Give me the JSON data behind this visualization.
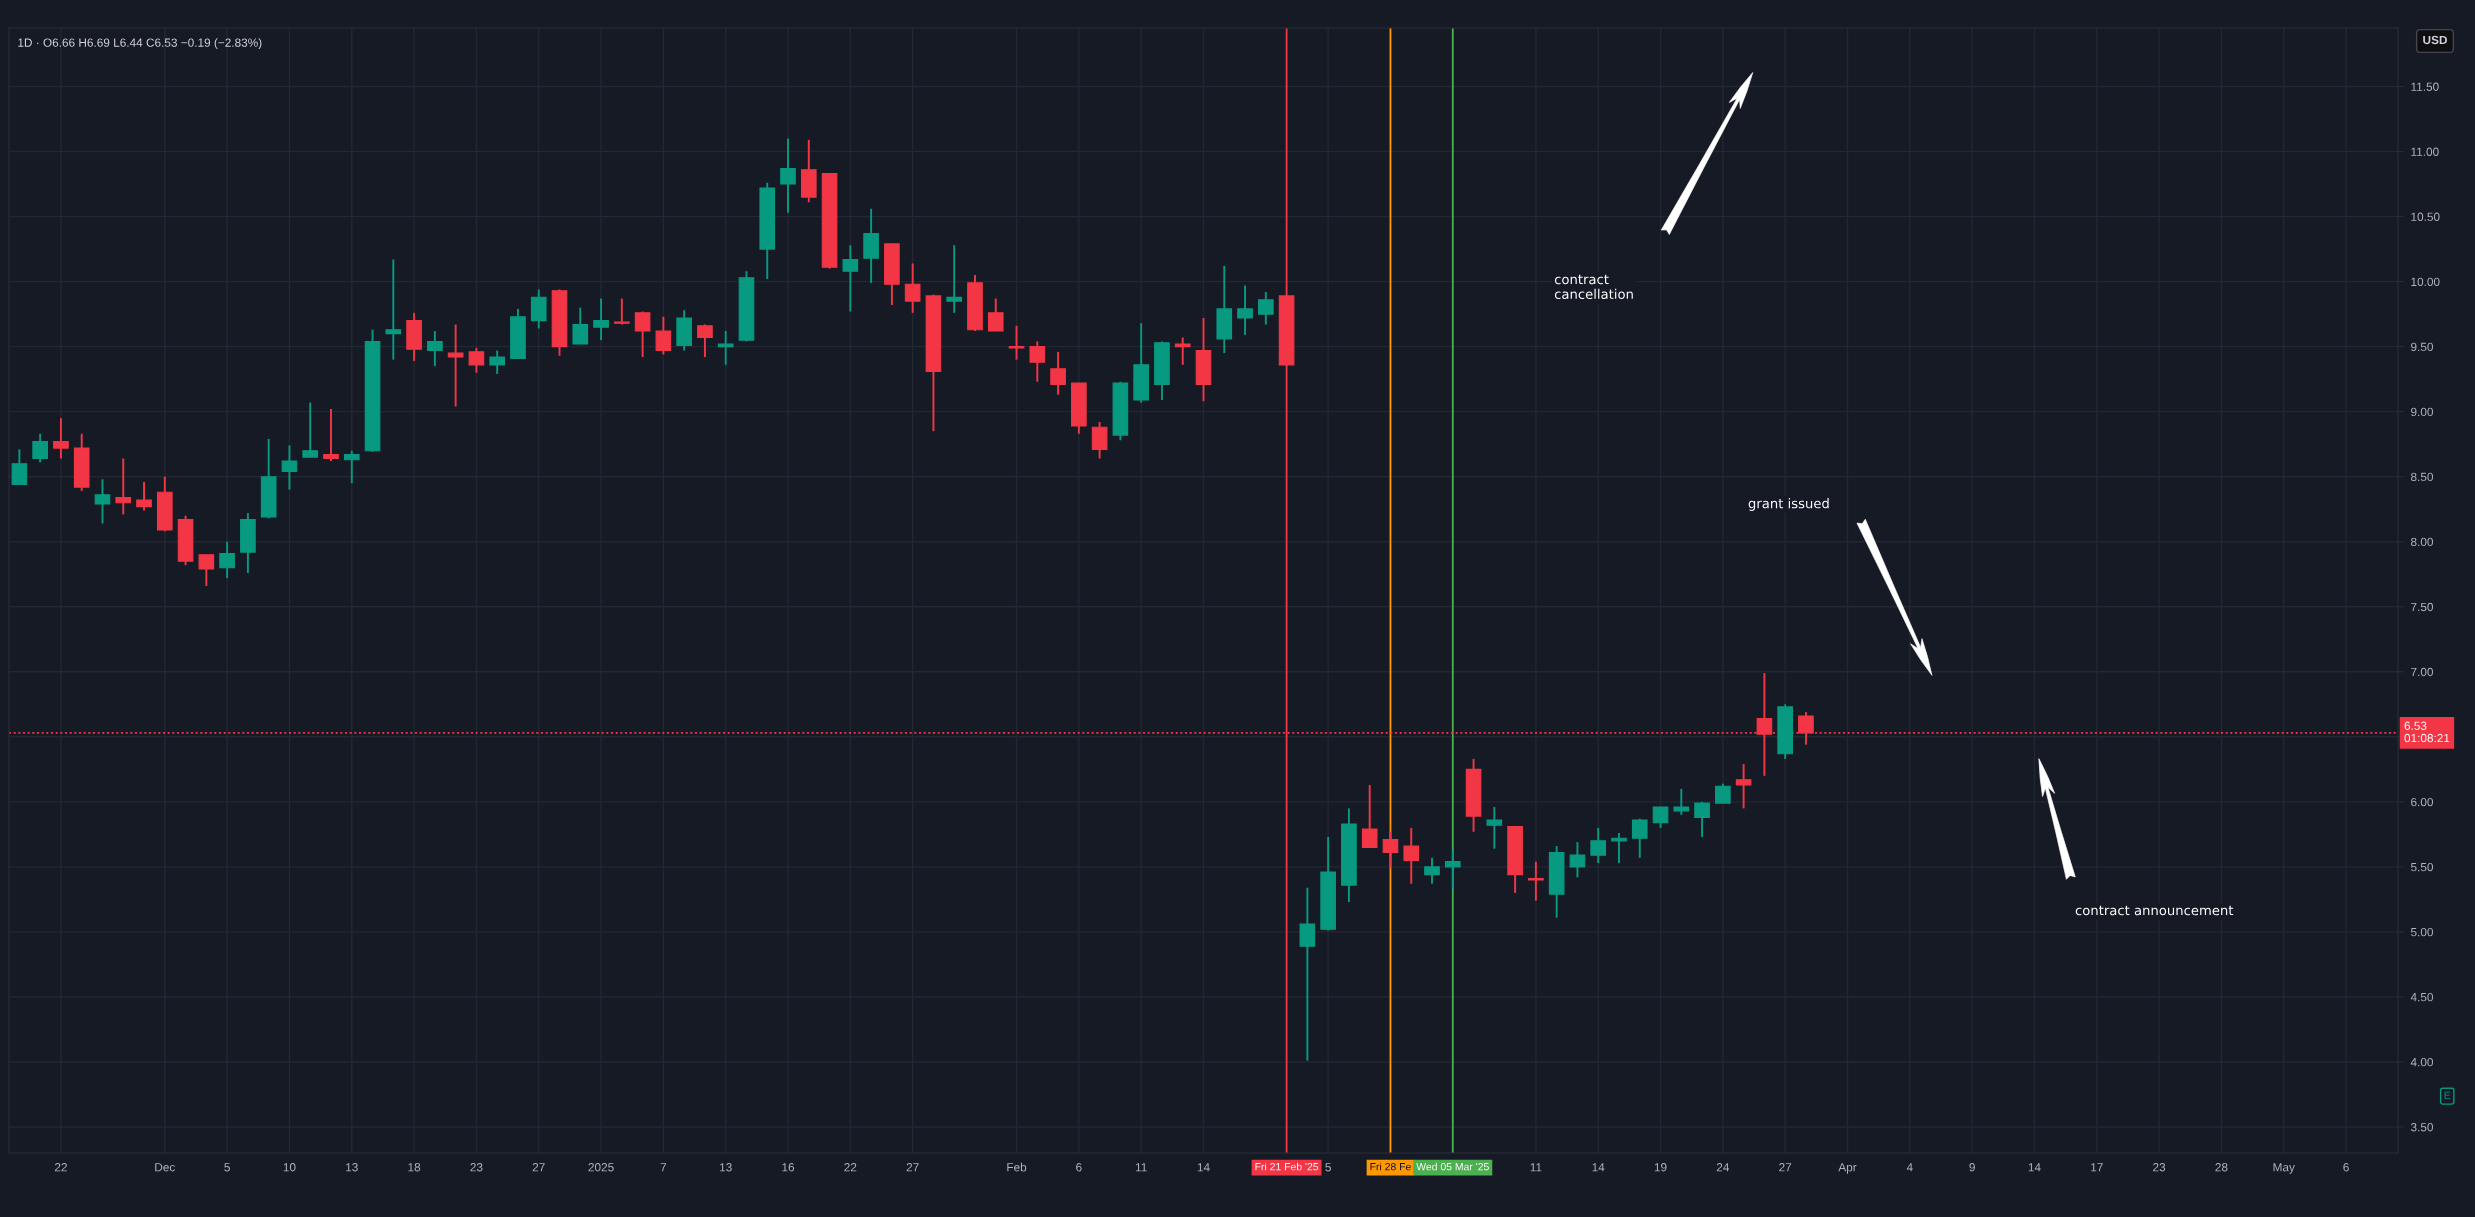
{
  "chart_data": {
    "type": "candlestick",
    "title": "1D · O6.66 H6.69 L6.44 C6.53 −0.19 (−2.83%)",
    "ylabel": "USD",
    "categories": [
      null,
      null,
      "22",
      null,
      null,
      null,
      null,
      "Dec",
      null,
      null,
      "5",
      null,
      null,
      "10",
      null,
      null,
      "13",
      null,
      null,
      "18",
      null,
      null,
      "23",
      null,
      null,
      "27",
      null,
      null,
      "2025",
      null,
      null,
      "7",
      null,
      null,
      "13",
      null,
      null,
      "16",
      null,
      null,
      "22",
      null,
      null,
      "27",
      null,
      null,
      null,
      null,
      "Feb",
      null,
      null,
      "6",
      null,
      null,
      "11",
      null,
      null,
      "14",
      null,
      null,
      null,
      "Fri 21 Feb '25",
      null,
      "5",
      null,
      null,
      "Fri 28 Fe",
      null,
      null,
      "Wed 05 Mar '25",
      null,
      null,
      null,
      "11",
      null,
      null,
      "14",
      null,
      null,
      "19",
      null,
      null,
      "24",
      null,
      null,
      "27",
      null,
      null,
      "Apr",
      null,
      null,
      "4",
      null,
      null,
      "9",
      null,
      null,
      "14",
      null,
      null,
      "17",
      null,
      null,
      "23",
      null,
      null,
      "28",
      null,
      null,
      "May",
      null,
      null,
      "6",
      null,
      null
    ],
    "ohlc": [
      [
        8.44,
        8.71,
        8.44,
        8.6
      ],
      [
        8.64,
        8.83,
        8.61,
        8.77
      ],
      [
        8.77,
        8.95,
        8.64,
        8.72
      ],
      [
        8.72,
        8.83,
        8.39,
        8.42
      ],
      [
        8.29,
        8.48,
        8.14,
        8.36
      ],
      [
        8.34,
        8.64,
        8.21,
        8.3
      ],
      [
        8.32,
        8.46,
        8.24,
        8.27
      ],
      [
        8.38,
        8.5,
        8.08,
        8.09
      ],
      [
        8.17,
        8.2,
        7.82,
        7.85
      ],
      [
        7.9,
        7.9,
        7.66,
        7.79
      ],
      [
        7.8,
        8.0,
        7.72,
        7.91
      ],
      [
        7.92,
        8.22,
        7.76,
        8.17
      ],
      [
        8.19,
        8.79,
        8.18,
        8.5
      ],
      [
        8.54,
        8.74,
        8.4,
        8.62
      ],
      [
        8.65,
        9.07,
        8.65,
        8.7
      ],
      [
        8.67,
        9.02,
        8.62,
        8.64
      ],
      [
        8.63,
        8.7,
        8.45,
        8.67
      ],
      [
        8.7,
        9.63,
        8.69,
        9.54
      ],
      [
        9.6,
        10.17,
        9.4,
        9.63
      ],
      [
        9.7,
        9.76,
        9.39,
        9.48
      ],
      [
        9.47,
        9.62,
        9.35,
        9.54
      ],
      [
        9.45,
        9.67,
        9.04,
        9.42
      ],
      [
        9.46,
        9.49,
        9.3,
        9.36
      ],
      [
        9.36,
        9.47,
        9.29,
        9.42
      ],
      [
        9.41,
        9.79,
        9.41,
        9.73
      ],
      [
        9.7,
        9.94,
        9.64,
        9.88
      ],
      [
        9.93,
        9.94,
        9.43,
        9.5
      ],
      [
        9.52,
        9.8,
        9.52,
        9.67
      ],
      [
        9.65,
        9.87,
        9.55,
        9.7
      ],
      [
        9.69,
        9.87,
        9.67,
        9.68
      ],
      [
        9.76,
        9.77,
        9.42,
        9.62
      ],
      [
        9.62,
        9.73,
        9.44,
        9.47
      ],
      [
        9.51,
        9.78,
        9.47,
        9.72
      ],
      [
        9.66,
        9.67,
        9.42,
        9.57
      ],
      [
        9.5,
        9.62,
        9.36,
        9.52
      ],
      [
        9.55,
        10.08,
        9.54,
        10.03
      ],
      [
        10.25,
        10.76,
        10.02,
        10.72
      ],
      [
        10.75,
        11.1,
        10.53,
        10.87
      ],
      [
        10.86,
        11.09,
        10.61,
        10.65
      ],
      [
        10.83,
        10.83,
        10.1,
        10.11
      ],
      [
        10.08,
        10.28,
        9.77,
        10.17
      ],
      [
        10.18,
        10.56,
        9.99,
        10.37
      ],
      [
        10.29,
        10.29,
        9.82,
        9.98
      ],
      [
        9.98,
        10.14,
        9.76,
        9.85
      ],
      [
        9.89,
        9.9,
        8.85,
        9.31
      ],
      [
        9.85,
        10.28,
        9.76,
        9.88
      ],
      [
        9.99,
        10.05,
        9.62,
        9.63
      ],
      [
        9.76,
        9.87,
        9.62,
        9.62
      ],
      [
        9.5,
        9.66,
        9.4,
        9.49
      ],
      [
        9.5,
        9.54,
        9.23,
        9.38
      ],
      [
        9.33,
        9.46,
        9.13,
        9.21
      ],
      [
        9.22,
        9.22,
        8.83,
        8.89
      ],
      [
        8.88,
        8.92,
        8.64,
        8.71
      ],
      [
        8.82,
        9.23,
        8.78,
        9.22
      ],
      [
        9.09,
        9.68,
        9.07,
        9.36
      ],
      [
        9.21,
        9.54,
        9.09,
        9.53
      ],
      [
        9.52,
        9.57,
        9.36,
        9.5
      ],
      [
        9.47,
        9.72,
        9.08,
        9.21
      ],
      [
        9.56,
        10.12,
        9.45,
        9.79
      ],
      [
        9.72,
        9.97,
        9.59,
        9.79
      ],
      [
        9.75,
        9.92,
        9.67,
        9.86
      ],
      [
        9.89,
        9.89,
        9.35,
        9.36
      ],
      [
        4.89,
        5.34,
        4.01,
        5.06
      ],
      [
        5.02,
        5.73,
        5.01,
        5.46
      ],
      [
        5.36,
        5.95,
        5.23,
        5.83
      ],
      [
        5.79,
        6.13,
        5.65,
        5.65
      ],
      [
        5.71,
        5.77,
        5.49,
        5.61
      ],
      [
        5.66,
        5.8,
        5.37,
        5.55
      ],
      [
        5.44,
        5.57,
        5.37,
        5.5
      ],
      [
        5.5,
        5.63,
        5.33,
        5.54
      ],
      [
        6.25,
        6.33,
        5.77,
        5.89
      ],
      [
        5.82,
        5.96,
        5.64,
        5.86
      ],
      [
        5.81,
        5.81,
        5.3,
        5.44
      ],
      [
        5.41,
        5.54,
        5.24,
        5.4
      ],
      [
        5.29,
        5.66,
        5.11,
        5.61
      ],
      [
        5.5,
        5.69,
        5.42,
        5.59
      ],
      [
        5.59,
        5.8,
        5.53,
        5.7
      ],
      [
        5.7,
        5.76,
        5.53,
        5.72
      ],
      [
        5.72,
        5.87,
        5.57,
        5.86
      ],
      [
        5.84,
        5.96,
        5.8,
        5.96
      ],
      [
        5.93,
        6.1,
        5.9,
        5.96
      ],
      [
        5.88,
        6.0,
        5.73,
        5.99
      ],
      [
        5.99,
        6.14,
        5.99,
        6.12
      ],
      [
        6.17,
        6.29,
        5.95,
        6.13
      ],
      [
        6.64,
        6.99,
        6.2,
        6.52
      ],
      [
        6.37,
        6.75,
        6.33,
        6.73
      ],
      [
        6.66,
        6.69,
        6.44,
        6.53
      ],
      null,
      null,
      null,
      null,
      null,
      null,
      null,
      null,
      null,
      null,
      null,
      null,
      null,
      null,
      null,
      null,
      null,
      null,
      null,
      null,
      null,
      null,
      null,
      null,
      null,
      null,
      null,
      null
    ],
    "colors": [
      "#089981",
      "#089981",
      "#f23645",
      "#f23645",
      "#089981",
      "#f23645",
      "#f23645",
      "#f23645",
      "#f23645",
      "#f23645",
      "#089981",
      "#089981",
      "#089981",
      "#089981",
      "#089981",
      "#f23645",
      "#089981",
      "#089981",
      "#089981",
      "#f23645",
      "#089981",
      "#f23645",
      "#f23645",
      "#089981",
      "#089981",
      "#089981",
      "#f23645",
      "#089981",
      "#089981",
      "#f23645",
      "#f23645",
      "#f23645",
      "#089981",
      "#f23645",
      "#089981",
      "#089981",
      "#089981",
      "#089981",
      "#f23645",
      "#f23645",
      "#089981",
      "#089981",
      "#f23645",
      "#f23645",
      "#f23645",
      "#089981",
      "#f23645",
      "#f23645",
      "#f23645",
      "#f23645",
      "#f23645",
      "#f23645",
      "#f23645",
      "#089981",
      "#089981",
      "#089981",
      "#f23645",
      "#f23645",
      "#089981",
      "#089981",
      "#089981",
      "#f23645",
      "#089981",
      "#089981",
      "#089981",
      "#f23645",
      "#f23645",
      "#f23645",
      "#089981",
      "#089981",
      "#f23645",
      "#089981",
      "#f23645",
      "#f23645",
      "#089981",
      "#089981",
      "#089981",
      "#089981",
      "#089981",
      "#089981",
      "#089981",
      "#089981",
      "#089981",
      "#f23645",
      "#f23645",
      "#089981",
      "#f23645",
      null,
      null,
      null,
      null,
      null,
      null,
      null,
      null,
      null,
      null,
      null,
      null,
      null,
      null,
      null,
      null,
      null,
      null,
      null,
      null,
      null,
      null,
      null,
      null,
      null,
      null,
      null,
      null
    ],
    "ylim": [
      3.3,
      11.95
    ],
    "yticks": [
      {
        "value": 3.5,
        "label": "3.50"
      },
      {
        "value": 4,
        "label": "4.00"
      },
      {
        "value": 4.5,
        "label": "4.50"
      },
      {
        "value": 5,
        "label": "5.00"
      },
      {
        "value": 5.5,
        "label": "5.50"
      },
      {
        "value": 6,
        "label": "6.00"
      },
      {
        "value": 6.5,
        "label": null
      },
      {
        "value": 7,
        "label": "7.00"
      },
      {
        "value": 7.5,
        "label": "7.50"
      },
      {
        "value": 8,
        "label": "8.00"
      },
      {
        "value": 8.5,
        "label": "8.50"
      },
      {
        "value": 9,
        "label": "9.00"
      },
      {
        "value": 9.5,
        "label": "9.50"
      },
      {
        "value": 10,
        "label": "10.00"
      },
      {
        "value": 10.5,
        "label": "10.50"
      },
      {
        "value": 11,
        "label": "11.00"
      },
      {
        "value": 11.5,
        "label": "11.50"
      }
    ],
    "grid": true,
    "ref_lines": [
      {
        "axis": "x",
        "value": "Fri 21 Feb '25",
        "color": "#f23645"
      },
      {
        "axis": "x",
        "value": "Fri 28 Fe",
        "color": "#ff9800"
      },
      {
        "axis": "x",
        "value": "Wed 05 Mar '25",
        "color": "#4caf50"
      },
      {
        "axis": "y",
        "value": 6.53,
        "label": "6.53\n01:08:21",
        "color": "#f23645",
        "line_style": "dotted"
      }
    ],
    "annotations": [
      "contract\ncancellation",
      "grant issued",
      "contract announcement",
      "E"
    ]
  }
}
